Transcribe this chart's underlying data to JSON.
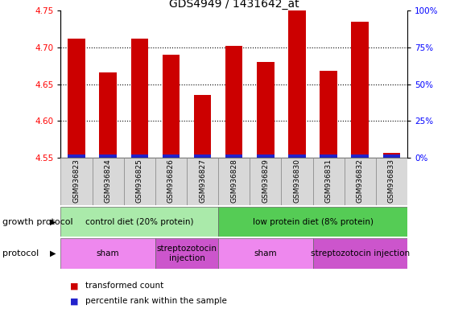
{
  "title": "GDS4949 / 1431642_at",
  "samples": [
    "GSM936823",
    "GSM936824",
    "GSM936825",
    "GSM936826",
    "GSM936827",
    "GSM936828",
    "GSM936829",
    "GSM936830",
    "GSM936831",
    "GSM936832",
    "GSM936833"
  ],
  "red_values": [
    4.712,
    4.666,
    4.712,
    4.69,
    4.635,
    4.702,
    4.68,
    4.75,
    4.668,
    4.735,
    4.556
  ],
  "ylim_left": [
    4.55,
    4.75
  ],
  "ylim_right": [
    0,
    100
  ],
  "yticks_left": [
    4.55,
    4.6,
    4.65,
    4.7,
    4.75
  ],
  "yticks_right": [
    0,
    25,
    50,
    75,
    100
  ],
  "ytick_labels_right": [
    "0%",
    "25%",
    "50%",
    "75%",
    "100%"
  ],
  "grid_ticks": [
    4.6,
    4.65,
    4.7
  ],
  "bar_color_red": "#cc0000",
  "bar_color_blue": "#2222cc",
  "bar_width": 0.55,
  "base_value": 4.55,
  "growth_protocol_label": "growth protocol",
  "protocol_label": "protocol",
  "growth_groups": [
    {
      "label": "control diet (20% protein)",
      "start": 0,
      "end": 5,
      "color": "#aaeaaa"
    },
    {
      "label": "low protein diet (8% protein)",
      "start": 5,
      "end": 11,
      "color": "#55cc55"
    }
  ],
  "protocol_groups": [
    {
      "label": "sham",
      "start": 0,
      "end": 3,
      "color": "#ee88ee"
    },
    {
      "label": "streptozotocin\ninjection",
      "start": 3,
      "end": 5,
      "color": "#cc55cc"
    },
    {
      "label": "sham",
      "start": 5,
      "end": 8,
      "color": "#ee88ee"
    },
    {
      "label": "streptozotocin injection",
      "start": 8,
      "end": 11,
      "color": "#cc55cc"
    }
  ],
  "legend_red_label": "transformed count",
  "legend_blue_label": "percentile rank within the sample",
  "title_fontsize": 10,
  "tick_fontsize": 7.5,
  "sample_fontsize": 6.5,
  "row_fontsize": 7.5,
  "legend_fontsize": 7.5
}
